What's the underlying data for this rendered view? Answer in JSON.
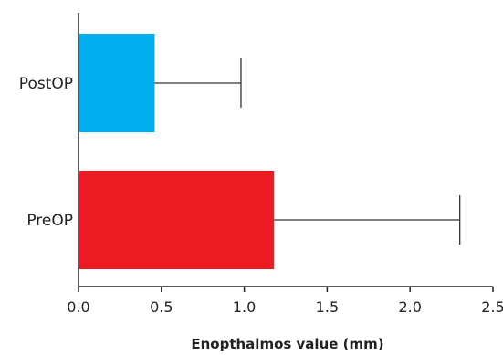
{
  "chart_data": {
    "type": "bar",
    "orientation": "horizontal",
    "categories": [
      "PostOP",
      "PreOP"
    ],
    "values": [
      0.46,
      1.18
    ],
    "error": [
      0.52,
      1.12
    ],
    "colors": [
      "#00aeef",
      "#ed1c24"
    ],
    "xlabel": "Enopthalmos value (mm)",
    "ylabel": "",
    "xlim": [
      0,
      2.5
    ],
    "xticks": [
      "0.0",
      "0.5",
      "1.0",
      "1.5",
      "2.0",
      "2.5"
    ],
    "grid": false
  }
}
